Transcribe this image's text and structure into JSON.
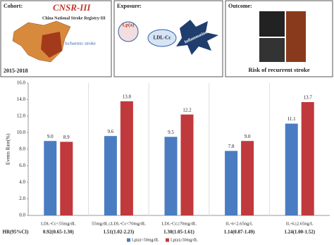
{
  "panels": {
    "cohort": {
      "title": "Cohort:",
      "name": "CNSR-III",
      "subtitle": "China National Stroke Registry-III",
      "population": "Ischaemic stroke",
      "period": "2015-2018"
    },
    "exposure": {
      "title": "Exposure:",
      "items": [
        "Lp(a)",
        "LDL-Cc",
        "Inflammation"
      ]
    },
    "outcome": {
      "title": "Outcome:",
      "label": "Risk of recurrent stroke"
    }
  },
  "chart_data": {
    "type": "bar",
    "y_label": "Events Rate(%)",
    "categories": [
      "LDL-Cc<55mg/dL",
      "55mg/dL≤LDL-Cc<70mg/dL",
      "LDL-Cc≥70mg/dL",
      "IL-6<2.65ng/L",
      "IL-6≥2.65ng/L"
    ],
    "series": [
      {
        "name": "Lp(a)<50mg/dL",
        "color": "#4a7cc2",
        "values": [
          9.0,
          9.6,
          9.5,
          7.8,
          11.1
        ],
        "value_labels": [
          "9.0",
          "9.6",
          "9.5",
          "7.8",
          "11.1"
        ]
      },
      {
        "name": "Lp(a)≥50mg/dL",
        "color": "#c0393c",
        "values": [
          8.9,
          13.8,
          12.2,
          9.0,
          13.7
        ],
        "value_labels": [
          "8.9",
          "13.8",
          "12.2",
          "9.0",
          "13.7"
        ]
      }
    ],
    "ylim": [
      0,
      16
    ],
    "yticks": [
      {
        "value": 0,
        "label": "0.0"
      },
      {
        "value": 2,
        "label": "2.0"
      },
      {
        "value": 4,
        "label": "4.0"
      },
      {
        "value": 6,
        "label": "6.0"
      },
      {
        "value": 8,
        "label": "8.0"
      },
      {
        "value": 10,
        "label": "10.0"
      },
      {
        "value": 12,
        "label": "12.0"
      },
      {
        "value": 14,
        "label": "14.0"
      },
      {
        "value": 16,
        "label": "16.0"
      }
    ],
    "hr_label": "HR(95%CI)",
    "hr": [
      "0.92(0.65-1.30)",
      "1.51(1.02-2.23)",
      "1.30(1.05-1.61)",
      "1.14(0.87-1.49)",
      "1.24(1.00-1.52)"
    ],
    "legend": "bottom"
  }
}
